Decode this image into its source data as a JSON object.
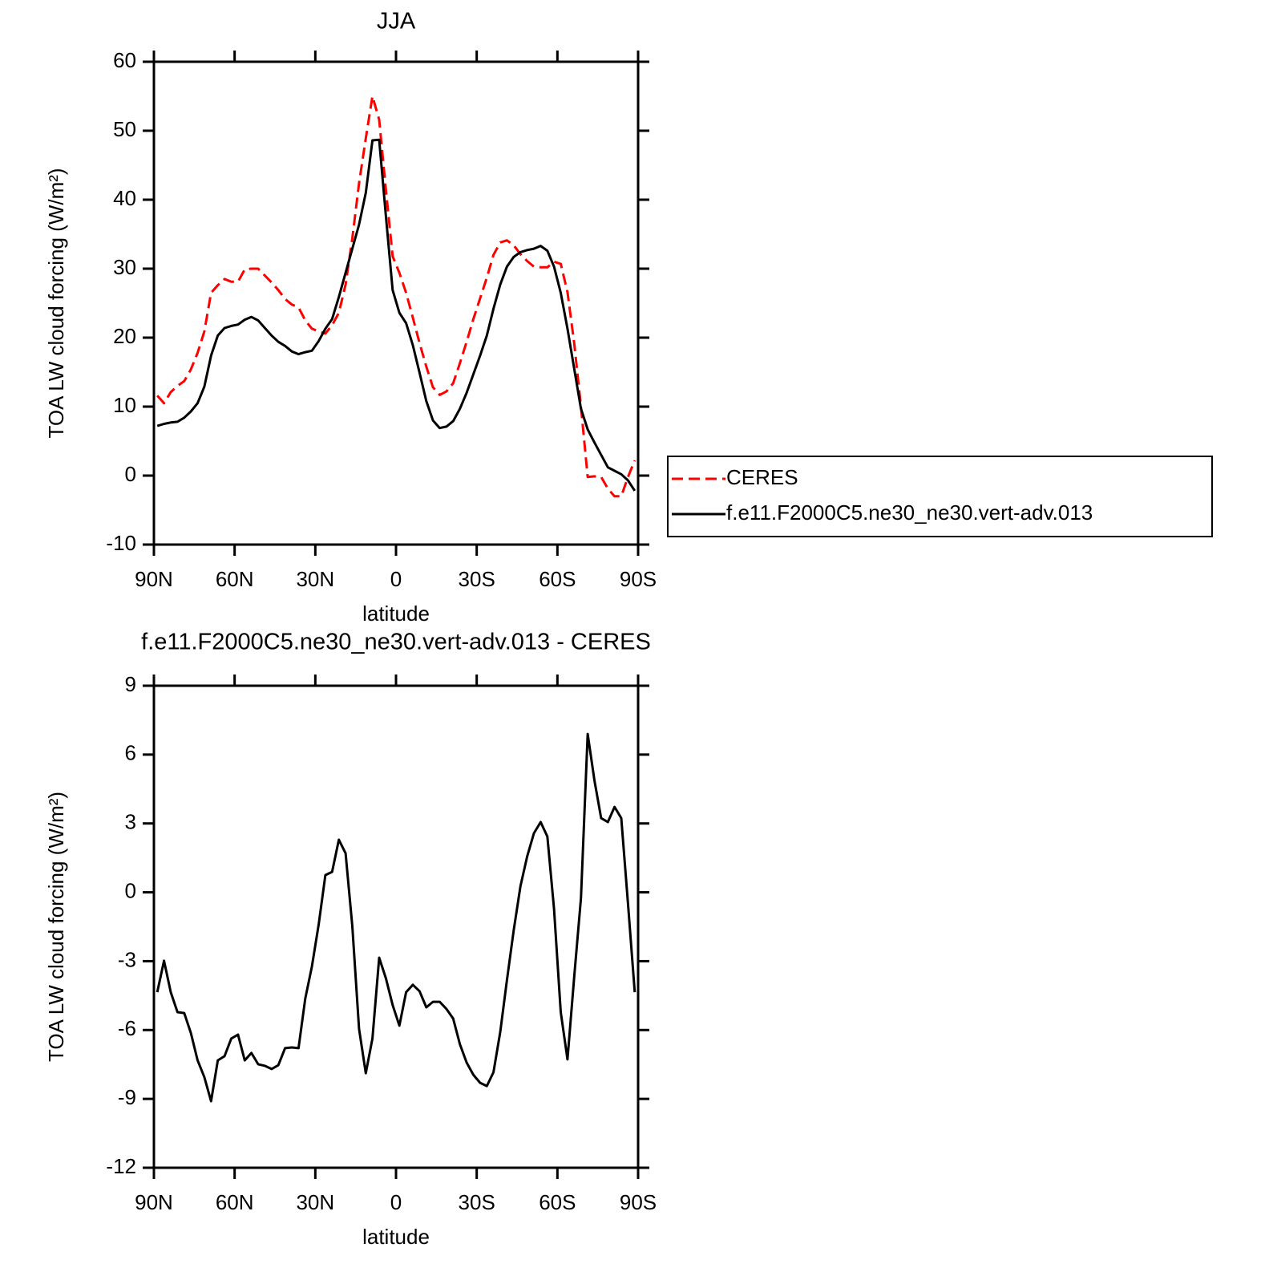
{
  "chart_data": [
    {
      "type": "line",
      "title": "JJA",
      "xlabel": "latitude",
      "ylabel": "TOA LW cloud forcing (W/m²)",
      "x": [
        88.75,
        86.25,
        83.75,
        81.25,
        78.75,
        76.25,
        73.75,
        71.25,
        68.75,
        66.25,
        63.75,
        61.25,
        58.75,
        56.25,
        53.75,
        51.25,
        48.75,
        46.25,
        43.75,
        41.25,
        38.75,
        36.25,
        33.75,
        31.25,
        28.75,
        26.25,
        23.75,
        21.25,
        18.75,
        16.25,
        13.75,
        11.25,
        8.75,
        6.25,
        3.75,
        1.25,
        -1.25,
        -3.75,
        -6.25,
        -8.75,
        -11.25,
        -13.75,
        -16.25,
        -18.75,
        -21.25,
        -23.75,
        -26.25,
        -28.75,
        -31.25,
        -33.75,
        -36.25,
        -38.75,
        -41.25,
        -43.75,
        -46.25,
        -48.75,
        -51.25,
        -53.75,
        -56.25,
        -58.75,
        -61.25,
        -63.75,
        -66.25,
        -68.75,
        -71.25,
        -73.75,
        -76.25,
        -78.75,
        -81.25,
        -83.75,
        -86.25,
        -88.75
      ],
      "series": [
        {
          "name": "CERES",
          "color": "#ff0000",
          "style": "dashed",
          "values": [
            11.6,
            10.5,
            12.1,
            13.0,
            13.7,
            15.4,
            17.8,
            20.9,
            26.5,
            27.6,
            28.5,
            28.1,
            28.1,
            29.9,
            30.0,
            30.0,
            29.0,
            28.0,
            26.9,
            25.6,
            24.8,
            24.4,
            22.5,
            21.3,
            20.9,
            20.6,
            21.8,
            23.6,
            27.7,
            34.4,
            42.4,
            48.9,
            55.0,
            51.6,
            41.4,
            31.8,
            29.4,
            26.5,
            22.9,
            19.2,
            15.8,
            12.8,
            11.7,
            12.2,
            13.4,
            16.3,
            19.4,
            22.7,
            25.7,
            28.7,
            32.0,
            33.8,
            34.1,
            33.4,
            32.1,
            31.1,
            30.3,
            30.2,
            30.2,
            31.0,
            30.7,
            26.6,
            19.2,
            10.0,
            -0.2,
            -0.1,
            -0.2,
            -1.9,
            -3.0,
            -3.0,
            -0.2,
            2.2
          ]
        },
        {
          "name": "f.e11.F2000C5.ne30_ne30.vert-adv.013",
          "color": "#000000",
          "style": "solid",
          "values": [
            7.2,
            7.5,
            7.7,
            7.8,
            8.4,
            9.3,
            10.5,
            12.9,
            17.4,
            20.3,
            21.4,
            21.7,
            21.9,
            22.6,
            23.0,
            22.5,
            21.4,
            20.3,
            19.4,
            18.8,
            18.0,
            17.6,
            17.9,
            18.1,
            19.5,
            21.3,
            22.7,
            25.9,
            29.4,
            32.9,
            36.4,
            41.0,
            48.6,
            48.7,
            37.6,
            26.9,
            23.6,
            22.1,
            18.9,
            14.9,
            10.8,
            8.0,
            6.9,
            7.1,
            7.9,
            9.7,
            12.0,
            14.7,
            17.4,
            20.3,
            24.2,
            27.7,
            30.3,
            31.7,
            32.4,
            32.7,
            32.9,
            33.3,
            32.6,
            30.3,
            26.5,
            21.3,
            15.5,
            9.7,
            6.7,
            4.8,
            3.0,
            1.2,
            0.7,
            0.2,
            -0.7,
            -2.2
          ]
        }
      ],
      "xlim": [
        90,
        -90
      ],
      "xticks": [
        {
          "value": 90,
          "label": "90N"
        },
        {
          "value": 60,
          "label": "60N"
        },
        {
          "value": 30,
          "label": "30N"
        },
        0,
        {
          "value": -30,
          "label": "30S"
        },
        {
          "value": -60,
          "label": "60S"
        },
        {
          "value": -90,
          "label": "90S"
        }
      ],
      "ylim": [
        -10,
        60
      ],
      "yticks": [
        -10,
        0,
        10,
        20,
        30,
        40,
        50,
        60
      ],
      "legend": "outside-right"
    },
    {
      "type": "line",
      "title": "f.e11.F2000C5.ne30_ne30.vert-adv.013 - CERES",
      "xlabel": "latitude",
      "ylabel": "TOA LW cloud forcing (W/m²)",
      "x": [
        88.75,
        86.25,
        83.75,
        81.25,
        78.75,
        76.25,
        73.75,
        71.25,
        68.75,
        66.25,
        63.75,
        61.25,
        58.75,
        56.25,
        53.75,
        51.25,
        48.75,
        46.25,
        43.75,
        41.25,
        38.75,
        36.25,
        33.75,
        31.25,
        28.75,
        26.25,
        23.75,
        21.25,
        18.75,
        16.25,
        13.75,
        11.25,
        8.75,
        6.25,
        3.75,
        1.25,
        -1.25,
        -3.75,
        -6.25,
        -8.75,
        -11.25,
        -13.75,
        -16.25,
        -18.75,
        -21.25,
        -23.75,
        -26.25,
        -28.75,
        -31.25,
        -33.75,
        -36.25,
        -38.75,
        -41.25,
        -43.75,
        -46.25,
        -48.75,
        -51.25,
        -53.75,
        -56.25,
        -58.75,
        -61.25,
        -63.75,
        -66.25,
        -68.75,
        -71.25,
        -73.75,
        -76.25,
        -78.75,
        -81.25,
        -83.75,
        -86.25,
        -88.75
      ],
      "series": [
        {
          "color": "#000000",
          "style": "solid",
          "values": [
            -4.35,
            -2.98,
            -4.35,
            -5.22,
            -5.26,
            -6.13,
            -7.32,
            -8.05,
            -9.1,
            -7.32,
            -7.14,
            -6.37,
            -6.2,
            -7.32,
            -7.0,
            -7.49,
            -7.56,
            -7.7,
            -7.53,
            -6.79,
            -6.76,
            -6.79,
            -4.63,
            -3.23,
            -1.41,
            0.75,
            0.89,
            2.29,
            1.7,
            -1.48,
            -5.95,
            -7.88,
            -6.37,
            -2.85,
            -3.75,
            -4.91,
            -5.81,
            -4.35,
            -4.03,
            -4.31,
            -5.01,
            -4.77,
            -4.77,
            -5.08,
            -5.5,
            -6.62,
            -7.42,
            -7.95,
            -8.3,
            -8.44,
            -7.84,
            -6.09,
            -3.82,
            -1.66,
            0.26,
            1.56,
            2.57,
            3.06,
            2.43,
            -0.71,
            -5.22,
            -7.28,
            -3.68,
            -0.26,
            6.9,
            4.88,
            3.23,
            3.06,
            3.72,
            3.23,
            -0.5,
            -4.35
          ]
        }
      ],
      "xlim": [
        90,
        -90
      ],
      "xticks": [
        {
          "value": 90,
          "label": "90N"
        },
        {
          "value": 60,
          "label": "60N"
        },
        {
          "value": 30,
          "label": "30N"
        },
        0,
        {
          "value": -30,
          "label": "30S"
        },
        {
          "value": -60,
          "label": "60S"
        },
        {
          "value": -90,
          "label": "90S"
        }
      ],
      "ylim": [
        -12,
        9
      ],
      "yticks": [
        -12,
        -9,
        -6,
        -3,
        0,
        3,
        6,
        9
      ]
    }
  ]
}
